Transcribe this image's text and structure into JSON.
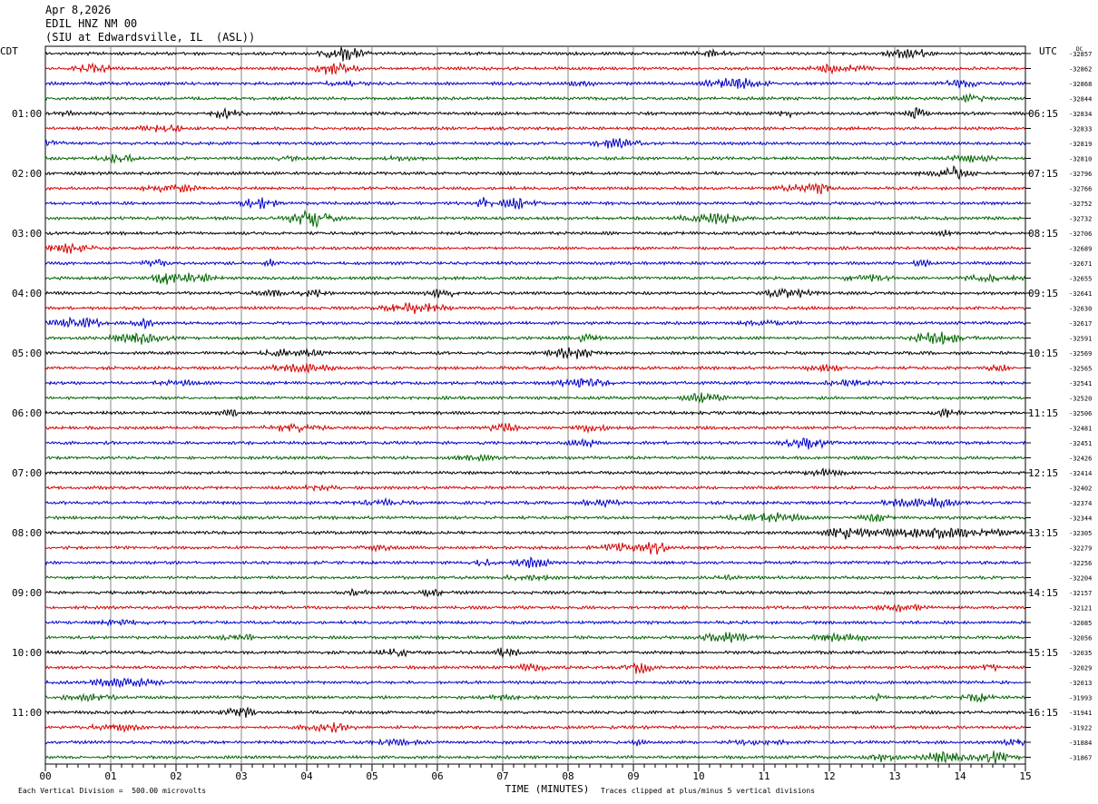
{
  "header": {
    "date": "Apr 8,2026",
    "channel": "EDIL HNZ NM 00",
    "station": "(SIU at Edwardsville, IL  (ASL))"
  },
  "left_zone_label": "CDT",
  "right_zone_label": "UTC",
  "dc_label": "DC",
  "footer": {
    "scale": "Each Vertical Division =  500.00 microvolts",
    "clip": "Traces clipped at plus/minus 5 vertical divisions"
  },
  "colors": {
    "trace_cycle": [
      "#000000",
      "#d40000",
      "#0000c8",
      "#006400"
    ],
    "grid": "#888888"
  },
  "chart_data": {
    "type": "line",
    "title": "",
    "xlabel": "TIME (MINUTES)",
    "xlim": [
      0,
      15
    ],
    "x_ticks": [
      "00",
      "01",
      "02",
      "03",
      "04",
      "05",
      "06",
      "07",
      "08",
      "09",
      "10",
      "11",
      "12",
      "13",
      "14",
      "15"
    ],
    "trace_minutes": 15,
    "left_hour_labels": [
      "01:00",
      "02:00",
      "03:00",
      "04:00",
      "05:00",
      "06:00",
      "07:00",
      "08:00",
      "09:00",
      "10:00",
      "11:00"
    ],
    "right_hour_labels": [
      "06:15",
      "07:15",
      "08:15",
      "09:15",
      "10:15",
      "11:15",
      "12:15",
      "13:15",
      "14:15",
      "15:15",
      "16:15"
    ],
    "dc_offsets": [
      -32857,
      -32862,
      -32868,
      -32844,
      -32834,
      -32833,
      -32819,
      -32810,
      -32796,
      -32766,
      -32752,
      -32732,
      -32706,
      -32689,
      -32671,
      -32655,
      -32641,
      -32630,
      -32617,
      -32591,
      -32569,
      -32565,
      -32541,
      -32520,
      -32506,
      -32481,
      -32451,
      -32426,
      -32414,
      -32402,
      -32374,
      -32344,
      -32305,
      -32279,
      -32256,
      -32204,
      -32157,
      -32121,
      -32085,
      -32056,
      -32035,
      -32029,
      -32013,
      -31993,
      -31941,
      -31922,
      -31884,
      -31867
    ]
  }
}
